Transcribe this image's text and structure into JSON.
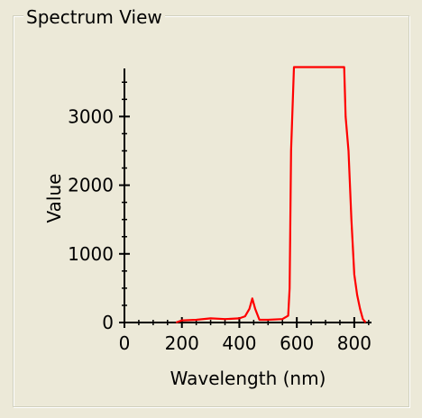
{
  "window": {
    "group_title": "Spectrum View"
  },
  "chart_data": {
    "type": "line",
    "title": "",
    "xlabel": "Wavelength (nm)",
    "ylabel": "Value",
    "xlim": [
      0,
      860
    ],
    "ylim": [
      0,
      3700
    ],
    "xticks": [
      0,
      200,
      400,
      600,
      800
    ],
    "yticks": [
      0,
      1000,
      2000,
      3000
    ],
    "grid": false,
    "series": [
      {
        "color": "#ff0000",
        "x": [
          180,
          200,
          250,
          300,
          350,
          400,
          420,
          435,
          445,
          455,
          470,
          500,
          550,
          570,
          575,
          580,
          590,
          600,
          650,
          700,
          750,
          765,
          770,
          780,
          790,
          800,
          810,
          820,
          830,
          840
        ],
        "y": [
          0,
          30,
          40,
          60,
          50,
          60,
          90,
          200,
          350,
          200,
          40,
          40,
          50,
          100,
          500,
          2500,
          3720,
          3720,
          3720,
          3720,
          3720,
          3720,
          3000,
          2500,
          1500,
          700,
          400,
          200,
          50,
          0
        ]
      }
    ]
  }
}
